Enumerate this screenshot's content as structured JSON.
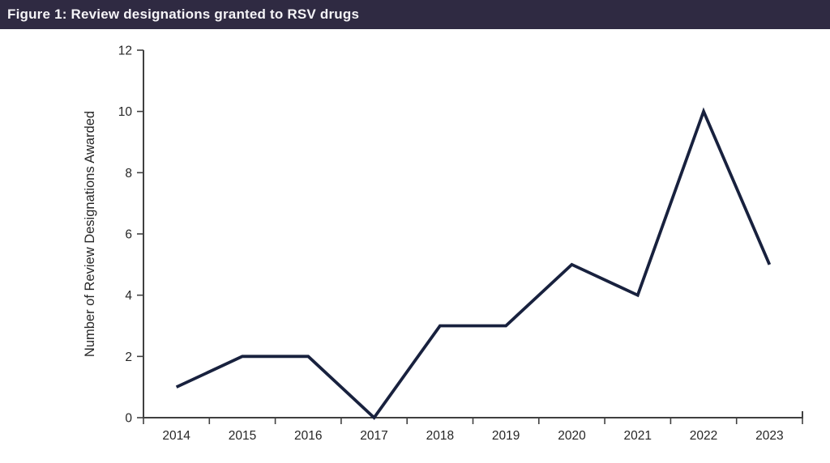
{
  "header": {
    "title": "Figure 1: Review designations granted to RSV drugs"
  },
  "colors": {
    "title_bar_bg": "#2F2A42",
    "title_text": "#F5F4F7",
    "background": "#FFFFFF",
    "line": "#18213E",
    "axis": "#404040",
    "labels": "#262626"
  },
  "chart_data": {
    "type": "line",
    "title": "Figure 1: Review designations granted to RSV drugs",
    "categories": [
      "2014",
      "2015",
      "2016",
      "2017",
      "2018",
      "2019",
      "2020",
      "2021",
      "2022",
      "2023"
    ],
    "values": [
      1,
      2,
      2,
      0,
      3,
      3,
      5,
      4,
      10,
      5
    ],
    "series": [
      {
        "name": "Review designations awarded",
        "values": [
          1,
          2,
          2,
          0,
          3,
          3,
          5,
          4,
          10,
          5
        ]
      }
    ],
    "xlabel": "",
    "ylabel": "Number of Review Designations Awarded",
    "ylim": [
      0,
      12
    ],
    "y_ticks": [
      0,
      2,
      4,
      6,
      8,
      10,
      12
    ],
    "grid": false,
    "legend": false,
    "line_color": "#18213E",
    "marker": "none"
  }
}
